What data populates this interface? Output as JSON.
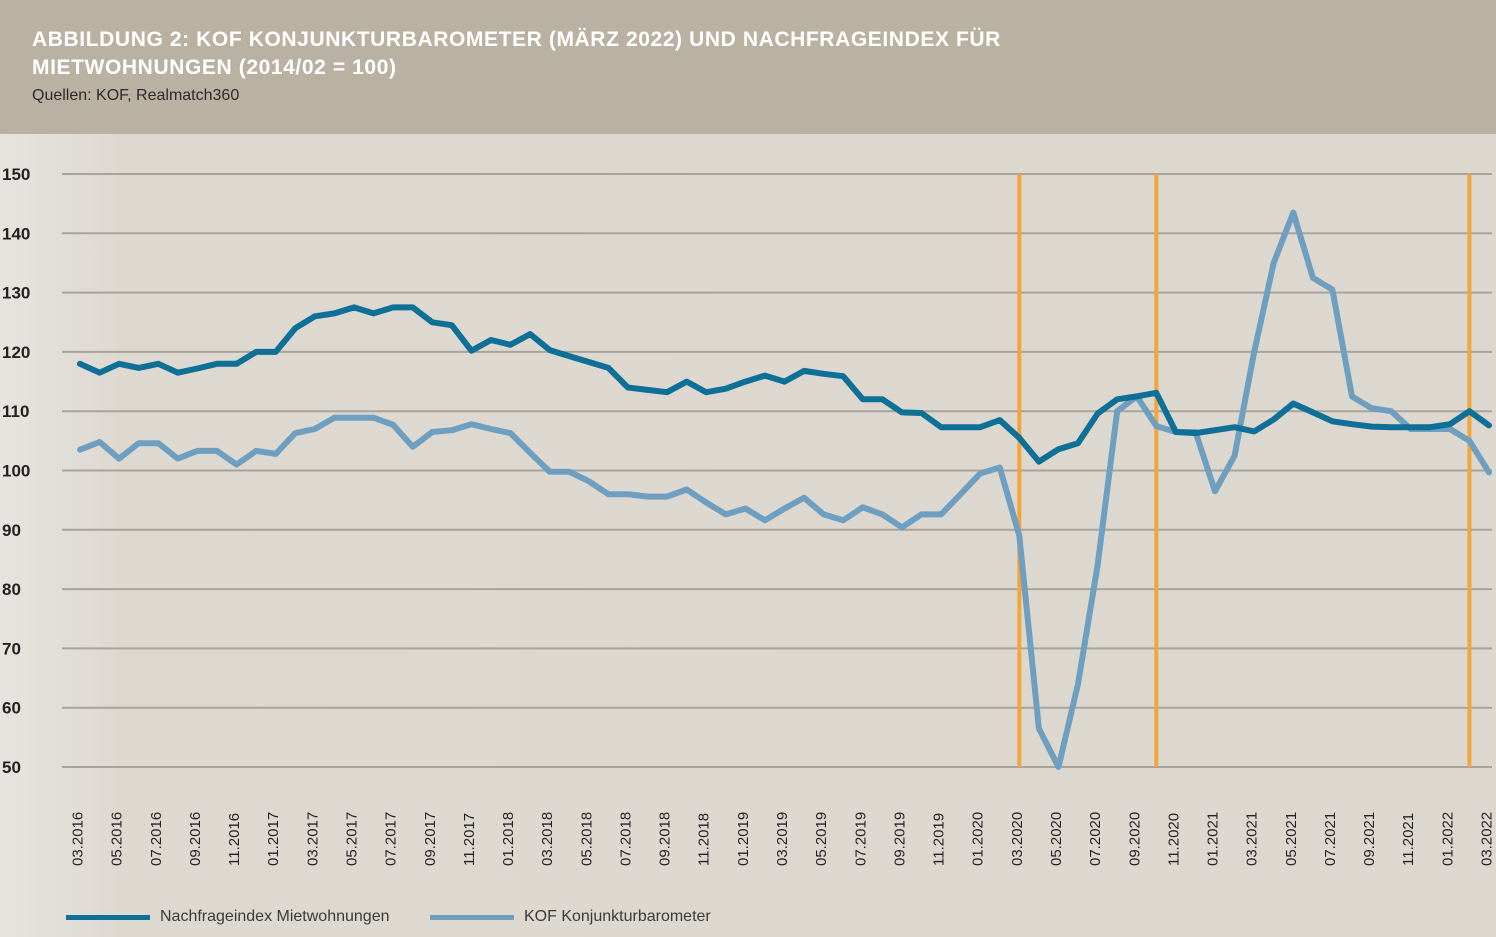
{
  "header": {
    "title_line1": "ABBILDUNG 2: KOF KONJUNKTURBAROMETER (MÄRZ 2022) UND NACHFRAGEINDEX FÜR",
    "title_line2": "MIETWOHNUNGEN (2014/02 = 100)",
    "source": "Quellen: KOF, Realmatch360"
  },
  "colors": {
    "header_bg": "#b9b2a3",
    "nachfrage": "#0e6f97",
    "kof": "#6f9fc0",
    "marker": "#f2a53a",
    "grid": "#a7a49c"
  },
  "chart_data": {
    "type": "line",
    "xlabel": "",
    "ylabel": "",
    "ylim": [
      50,
      150
    ],
    "yticks": [
      150,
      140,
      130,
      120,
      110,
      100,
      90,
      80,
      70,
      60,
      50
    ],
    "grid": true,
    "legend_position": "bottom-left",
    "x": [
      "03.2016",
      "04.2016",
      "05.2016",
      "06.2016",
      "07.2016",
      "08.2016",
      "09.2016",
      "10.2016",
      "11.2016",
      "12.2016",
      "01.2017",
      "02.2017",
      "03.2017",
      "04.2017",
      "05.2017",
      "06.2017",
      "07.2017",
      "08.2017",
      "09.2017",
      "10.2017",
      "11.2017",
      "12.2017",
      "01.2018",
      "02.2018",
      "03.2018",
      "04.2018",
      "05.2018",
      "06.2018",
      "07.2018",
      "08.2018",
      "09.2018",
      "10.2018",
      "11.2018",
      "12.2018",
      "01.2019",
      "02.2019",
      "03.2019",
      "04.2019",
      "05.2019",
      "06.2019",
      "07.2019",
      "08.2019",
      "09.2019",
      "10.2019",
      "11.2019",
      "12.2019",
      "01.2020",
      "02.2020",
      "03.2020",
      "04.2020",
      "05.2020",
      "06.2020",
      "07.2020",
      "08.2020",
      "09.2020",
      "10.2020",
      "11.2020",
      "12.2020",
      "01.2021",
      "02.2021",
      "03.2021",
      "04.2021",
      "05.2021",
      "06.2021",
      "07.2021",
      "08.2021",
      "09.2021",
      "10.2021",
      "11.2021",
      "12.2021",
      "01.2022",
      "02.2022",
      "03.2022"
    ],
    "xtick_labels": [
      "03.2016",
      "05.2016",
      "07.2016",
      "09.2016",
      "11.2016",
      "01.2017",
      "03.2017",
      "05.2017",
      "07.2017",
      "09.2017",
      "11.2017",
      "01.2018",
      "03.2018",
      "05.2018",
      "07.2018",
      "09.2018",
      "11.2018",
      "01.2019",
      "03.2019",
      "05.2019",
      "07.2019",
      "09.2019",
      "11.2019",
      "01.2020",
      "03.2020",
      "05.2020",
      "07.2020",
      "09.2020",
      "11.2020",
      "01.2021",
      "03.2021",
      "05.2021",
      "07.2021",
      "09.2021",
      "11.2021",
      "01.2022",
      "03.2022"
    ],
    "markers": [
      "03.2020",
      "10.2020",
      "02.2022"
    ],
    "series": [
      {
        "name": "Nachfrageindex Mietwohnungen",
        "values": [
          118,
          116.5,
          118,
          117.3,
          118,
          116.5,
          117.2,
          118,
          118,
          120,
          120,
          124,
          126,
          126.5,
          127.5,
          126.5,
          127.5,
          127.5,
          125,
          124.5,
          120.2,
          122,
          121.2,
          123,
          120.3,
          119.3,
          118.3,
          117.3,
          114,
          113.6,
          113.2,
          115,
          113.2,
          113.8,
          115,
          116,
          115,
          116.8,
          116.3,
          115.9,
          112,
          112,
          109.8,
          109.7,
          107.3,
          107.3,
          107.3,
          108.5,
          105.5,
          101.5,
          103.6,
          104.6,
          109.6,
          112,
          112.5,
          113.1,
          106.5,
          106.3,
          106.8,
          107.3,
          106.6,
          108.6,
          111.3,
          109.8,
          108.3,
          107.8,
          107.4,
          107.3,
          107.3,
          107.3,
          107.8,
          110,
          107.6
        ]
      },
      {
        "name": "KOF Konjunkturbarometer",
        "values": [
          103.5,
          104.8,
          102,
          104.6,
          104.6,
          102,
          103.3,
          103.3,
          101,
          103.3,
          102.8,
          106.3,
          107,
          108.9,
          108.9,
          108.9,
          107.7,
          104,
          106.5,
          106.8,
          107.8,
          107,
          106.3,
          103,
          99.8,
          99.8,
          98.2,
          96,
          96,
          95.6,
          95.6,
          96.8,
          94.6,
          92.6,
          93.6,
          91.6,
          93.6,
          95.4,
          92.6,
          91.6,
          93.8,
          92.6,
          90.4,
          92.6,
          92.6,
          96,
          99.5,
          100.5,
          89,
          56.5,
          50,
          64,
          84,
          110,
          112.5,
          107.5,
          106.5,
          106.5,
          96.5,
          102.5,
          120,
          135,
          143.5,
          132.5,
          130.5,
          112.5,
          110.5,
          110,
          107,
          107,
          107,
          105,
          99.7
        ]
      }
    ]
  }
}
